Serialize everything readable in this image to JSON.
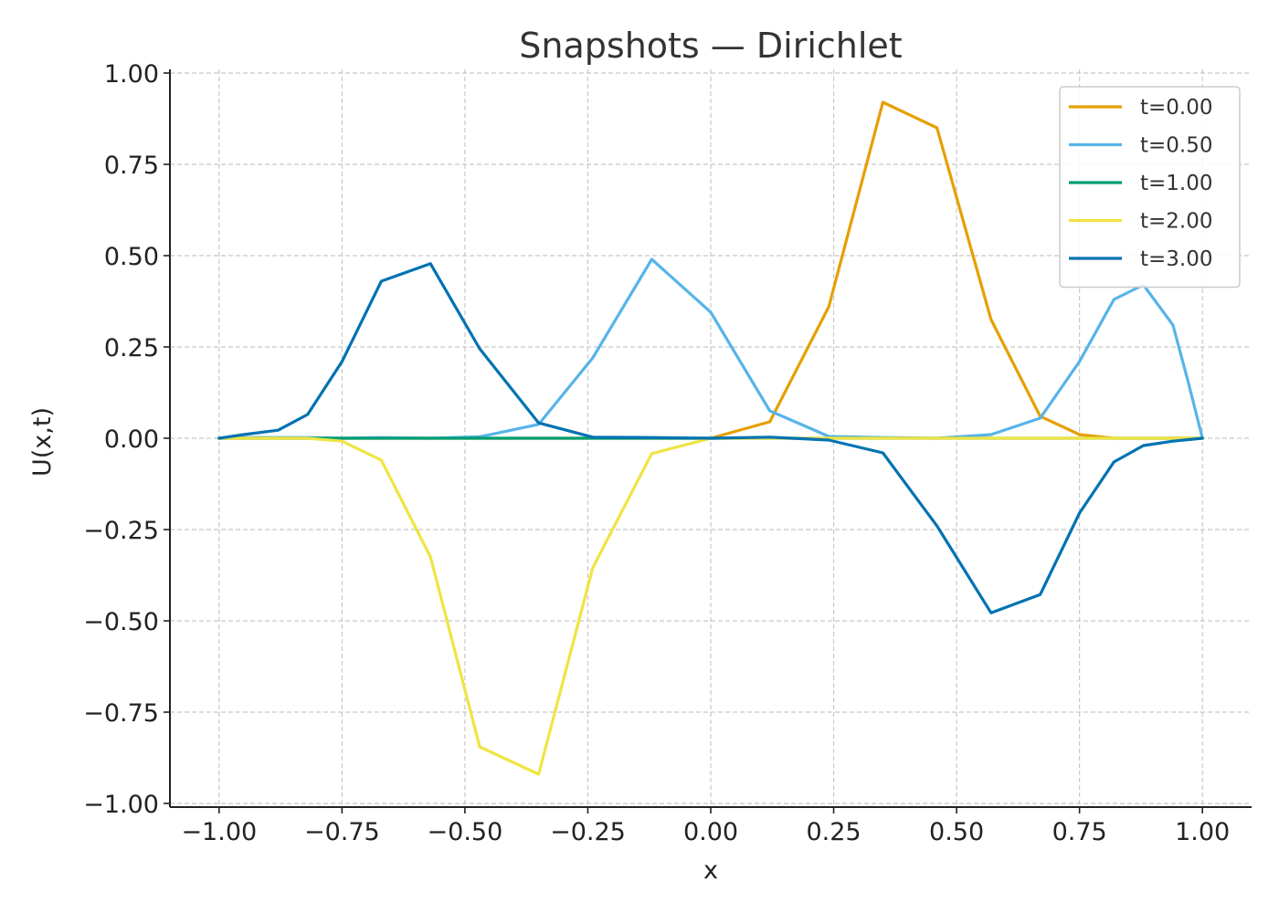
{
  "chart_data": {
    "type": "line",
    "title": "Snapshots — Dirichlet",
    "xlabel": "x",
    "ylabel": "U(x,t)",
    "xlim": [
      -1.1,
      1.1
    ],
    "ylim": [
      -1.01,
      1.01
    ],
    "grid": true,
    "legend_position": "top-right",
    "x_ticks": [
      -1.0,
      -0.75,
      -0.5,
      -0.25,
      0.0,
      0.25,
      0.5,
      0.75,
      1.0
    ],
    "x_tick_labels": [
      "−1.00",
      "−0.75",
      "−0.50",
      "−0.25",
      "0.00",
      "0.25",
      "0.50",
      "0.75",
      "1.00"
    ],
    "y_ticks": [
      1.0,
      0.75,
      0.5,
      0.25,
      0.0,
      -0.25,
      -0.5,
      -0.75,
      -1.0
    ],
    "y_tick_labels": [
      "1.00",
      "0.75",
      "0.50",
      "0.25",
      "0.00",
      "−0.25",
      "−0.50",
      "−0.75",
      "−1.00"
    ],
    "series": [
      {
        "name": "t=0.00",
        "color": "#E69F00",
        "points": [
          [
            -1.0,
            0.0
          ],
          [
            -0.47,
            0.0
          ],
          [
            0.0,
            0.0
          ],
          [
            0.12,
            0.045
          ],
          [
            0.24,
            0.36
          ],
          [
            0.35,
            0.92
          ],
          [
            0.46,
            0.85
          ],
          [
            0.57,
            0.325
          ],
          [
            0.67,
            0.06
          ],
          [
            0.75,
            0.01
          ],
          [
            0.82,
            0.0
          ],
          [
            0.93,
            0.0
          ],
          [
            1.0,
            0.0
          ]
        ]
      },
      {
        "name": "t=0.50",
        "color": "#56B4E9",
        "points": [
          [
            -1.0,
            0.0
          ],
          [
            -0.93,
            0.002
          ],
          [
            -0.88,
            0.002
          ],
          [
            -0.82,
            0.002
          ],
          [
            -0.75,
            0.0
          ],
          [
            -0.67,
            0.002
          ],
          [
            -0.57,
            0.0
          ],
          [
            -0.47,
            0.004
          ],
          [
            -0.35,
            0.038
          ],
          [
            -0.24,
            0.22
          ],
          [
            -0.12,
            0.49
          ],
          [
            0.0,
            0.345
          ],
          [
            0.12,
            0.075
          ],
          [
            0.24,
            0.005
          ],
          [
            0.35,
            0.002
          ],
          [
            0.46,
            0.0
          ],
          [
            0.57,
            0.01
          ],
          [
            0.67,
            0.055
          ],
          [
            0.75,
            0.21
          ],
          [
            0.82,
            0.38
          ],
          [
            0.88,
            0.42
          ],
          [
            0.94,
            0.31
          ],
          [
            0.97,
            0.16
          ],
          [
            1.0,
            0.0
          ]
        ]
      },
      {
        "name": "t=1.00",
        "color": "#009E73",
        "points": [
          [
            -1.0,
            0.0
          ],
          [
            1.0,
            0.0
          ]
        ]
      },
      {
        "name": "t=2.00",
        "color": "#F0E442",
        "points": [
          [
            -1.0,
            0.0
          ],
          [
            -0.88,
            0.0
          ],
          [
            -0.82,
            0.0
          ],
          [
            -0.75,
            -0.008
          ],
          [
            -0.67,
            -0.06
          ],
          [
            -0.57,
            -0.325
          ],
          [
            -0.47,
            -0.845
          ],
          [
            -0.35,
            -0.92
          ],
          [
            -0.24,
            -0.355
          ],
          [
            -0.12,
            -0.042
          ],
          [
            0.0,
            0.0
          ],
          [
            0.12,
            0.0
          ],
          [
            0.5,
            0.0
          ],
          [
            1.0,
            0.0
          ]
        ]
      },
      {
        "name": "t=3.00",
        "color": "#0072B2",
        "points": [
          [
            -1.0,
            0.0
          ],
          [
            -0.95,
            0.01
          ],
          [
            -0.88,
            0.022
          ],
          [
            -0.82,
            0.065
          ],
          [
            -0.75,
            0.21
          ],
          [
            -0.67,
            0.43
          ],
          [
            -0.57,
            0.478
          ],
          [
            -0.47,
            0.245
          ],
          [
            -0.35,
            0.042
          ],
          [
            -0.24,
            0.003
          ],
          [
            -0.12,
            0.002
          ],
          [
            0.0,
            0.0
          ],
          [
            0.12,
            0.003
          ],
          [
            0.24,
            -0.005
          ],
          [
            0.35,
            -0.04
          ],
          [
            0.46,
            -0.24
          ],
          [
            0.57,
            -0.478
          ],
          [
            0.67,
            -0.428
          ],
          [
            0.75,
            -0.205
          ],
          [
            0.82,
            -0.065
          ],
          [
            0.88,
            -0.02
          ],
          [
            0.94,
            -0.008
          ],
          [
            1.0,
            0.0
          ]
        ]
      }
    ]
  }
}
